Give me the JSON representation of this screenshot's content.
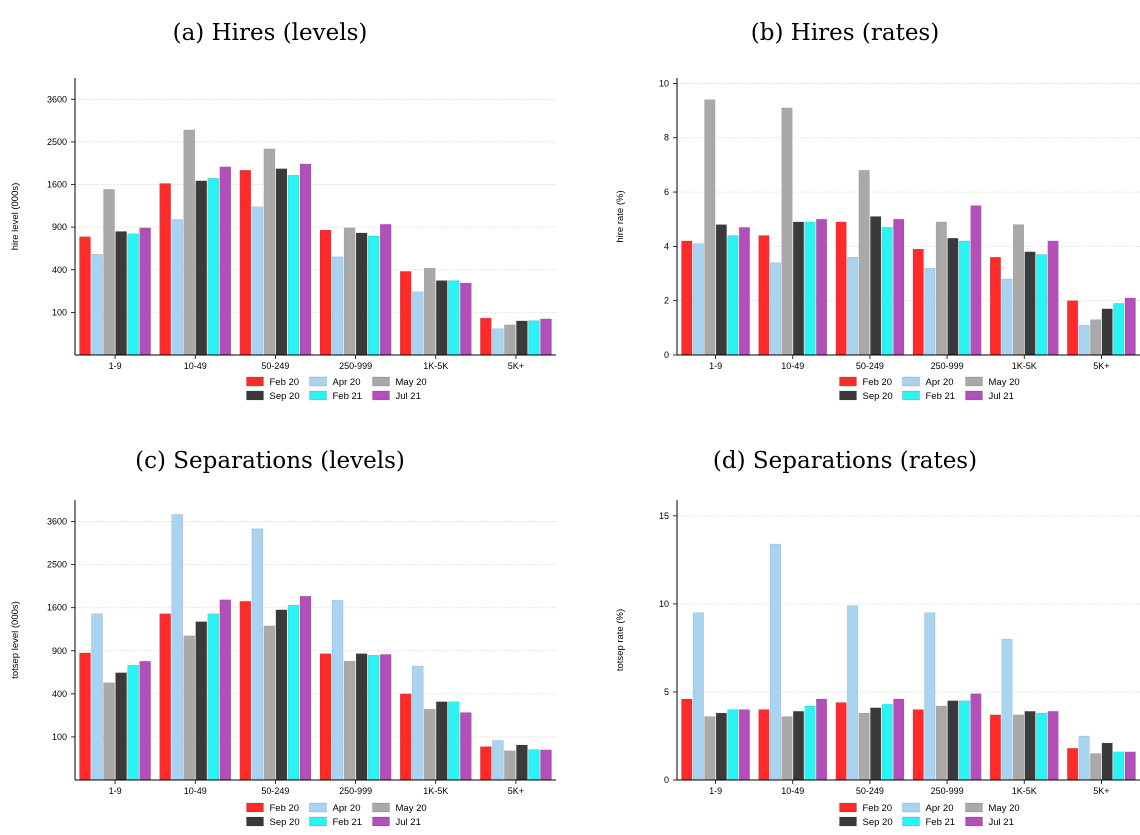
{
  "colors": {
    "Feb 20": "#ff2a2a",
    "Apr 20": "#a8d4f2",
    "May 20": "#a9a9a9",
    "Sep 20": "#3a3a3a",
    "Feb 21": "#2af3f3",
    "Jul 21": "#b34fb8"
  },
  "chart_data": [
    {
      "type": "bar",
      "title": "(a) Hires (levels)",
      "ylabel": "hire level (000s)",
      "yscale": "sqrt",
      "ylim": [
        0,
        4225
      ],
      "yticks": [
        100,
        400,
        900,
        1600,
        2500,
        3600
      ],
      "categories": [
        "1-9",
        "10-49",
        "50-249",
        "250-999",
        "1K-5K",
        "5K+"
      ],
      "series": [
        {
          "name": "Feb 20",
          "values": [
            770,
            1620,
            1880,
            860,
            385,
            75
          ]
        },
        {
          "name": "Apr 20",
          "values": [
            560,
            1010,
            1210,
            530,
            220,
            38
          ]
        },
        {
          "name": "May 20",
          "values": [
            1510,
            2790,
            2340,
            890,
            415,
            50
          ]
        },
        {
          "name": "Sep 20",
          "values": [
            840,
            1670,
            1910,
            820,
            305,
            64
          ]
        },
        {
          "name": "Feb 21",
          "values": [
            810,
            1720,
            1780,
            780,
            305,
            65
          ]
        },
        {
          "name": "Jul 21",
          "values": [
            890,
            1950,
            2010,
            940,
            285,
            72
          ]
        }
      ],
      "legend": {
        "entries": [
          "Feb 20",
          "Apr 20",
          "May 20",
          "Sep 20",
          "Feb 21",
          "Jul 21"
        ],
        "position": "bottom"
      },
      "grid": true
    },
    {
      "type": "bar",
      "title": "(b) Hires (rates)",
      "ylabel": "hire rate (%)",
      "yscale": "linear",
      "ylim": [
        0,
        10.2
      ],
      "yticks": [
        0,
        2,
        4,
        6,
        8,
        10
      ],
      "categories": [
        "1-9",
        "10-49",
        "50-249",
        "250-999",
        "1K-5K",
        "5K+"
      ],
      "series": [
        {
          "name": "Feb 20",
          "values": [
            4.2,
            4.4,
            4.9,
            3.9,
            3.6,
            2.0
          ]
        },
        {
          "name": "Apr 20",
          "values": [
            4.1,
            3.4,
            3.6,
            3.2,
            2.8,
            1.1
          ]
        },
        {
          "name": "May 20",
          "values": [
            9.4,
            9.1,
            6.8,
            4.9,
            4.8,
            1.3
          ]
        },
        {
          "name": "Sep 20",
          "values": [
            4.8,
            4.9,
            5.1,
            4.3,
            3.8,
            1.7
          ]
        },
        {
          "name": "Feb 21",
          "values": [
            4.4,
            4.9,
            4.7,
            4.2,
            3.7,
            1.9
          ]
        },
        {
          "name": "Jul 21",
          "values": [
            4.7,
            5.0,
            5.0,
            5.5,
            4.2,
            2.1
          ]
        }
      ],
      "legend": {
        "entries": [
          "Feb 20",
          "Apr 20",
          "May 20",
          "Sep 20",
          "Feb 21",
          "Jul 21"
        ],
        "position": "bottom"
      },
      "grid": true
    },
    {
      "type": "bar",
      "title": "(c) Separations (levels)",
      "ylabel": "totsep level (000s)",
      "yscale": "sqrt",
      "ylim": [
        0,
        4225
      ],
      "yticks": [
        100,
        400,
        900,
        1600,
        2500,
        3600
      ],
      "categories": [
        "1-9",
        "10-49",
        "50-249",
        "250-999",
        "1K-5K",
        "5K+"
      ],
      "series": [
        {
          "name": "Feb 20",
          "values": [
            870,
            1490,
            1720,
            860,
            400,
            60
          ]
        },
        {
          "name": "Apr 20",
          "values": [
            1490,
            3800,
            3400,
            1740,
            700,
            84
          ]
        },
        {
          "name": "May 20",
          "values": [
            510,
            1120,
            1280,
            760,
            270,
            46
          ]
        },
        {
          "name": "Sep 20",
          "values": [
            620,
            1350,
            1560,
            860,
            330,
            66
          ]
        },
        {
          "name": "Feb 21",
          "values": [
            710,
            1490,
            1650,
            840,
            330,
            50
          ]
        },
        {
          "name": "Jul 21",
          "values": [
            760,
            1750,
            1820,
            850,
            245,
            49
          ]
        }
      ],
      "legend": {
        "entries": [
          "Feb 20",
          "Apr 20",
          "May 20",
          "Sep 20",
          "Feb 21",
          "Jul 21"
        ],
        "position": "bottom"
      },
      "grid": true
    },
    {
      "type": "bar",
      "title": "(d) Separations (rates)",
      "ylabel": "totsep rate (%)",
      "yscale": "linear",
      "ylim": [
        0,
        15.9
      ],
      "yticks": [
        0,
        5,
        10,
        15
      ],
      "categories": [
        "1-9",
        "10-49",
        "50-249",
        "250-999",
        "1K-5K",
        "5K+"
      ],
      "series": [
        {
          "name": "Feb 20",
          "values": [
            4.6,
            4.0,
            4.4,
            4.0,
            3.7,
            1.8
          ]
        },
        {
          "name": "Apr 20",
          "values": [
            9.5,
            13.4,
            9.9,
            9.5,
            8.0,
            2.5
          ]
        },
        {
          "name": "May 20",
          "values": [
            3.6,
            3.6,
            3.8,
            4.2,
            3.7,
            1.5
          ]
        },
        {
          "name": "Sep 20",
          "values": [
            3.8,
            3.9,
            4.1,
            4.5,
            3.9,
            2.1
          ]
        },
        {
          "name": "Feb 21",
          "values": [
            4.0,
            4.2,
            4.3,
            4.5,
            3.8,
            1.6
          ]
        },
        {
          "name": "Jul 21",
          "values": [
            4.0,
            4.6,
            4.6,
            4.9,
            3.9,
            1.6
          ]
        }
      ],
      "legend": {
        "entries": [
          "Feb 20",
          "Apr 20",
          "May 20",
          "Sep 20",
          "Feb 21",
          "Jul 21"
        ],
        "position": "bottom"
      },
      "grid": true
    }
  ]
}
